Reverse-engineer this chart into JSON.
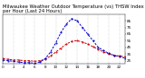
{
  "title": "Milwaukee Weather Outdoor Temperature (vs) THSW Index per Hour (Last 24 Hours)",
  "hours": [
    0,
    1,
    2,
    3,
    4,
    5,
    6,
    7,
    8,
    9,
    10,
    11,
    12,
    13,
    14,
    15,
    16,
    17,
    18,
    19,
    20,
    21,
    22,
    23
  ],
  "temp": [
    28,
    27,
    26,
    26,
    25,
    25,
    24,
    25,
    27,
    32,
    38,
    44,
    50,
    54,
    55,
    53,
    50,
    46,
    42,
    38,
    35,
    33,
    32,
    31
  ],
  "thsw": [
    26,
    25,
    24,
    23,
    22,
    22,
    21,
    23,
    28,
    38,
    52,
    68,
    80,
    88,
    85,
    75,
    65,
    55,
    45,
    40,
    36,
    33,
    31,
    29
  ],
  "temp_color": "#cc0000",
  "thsw_color": "#0000cc",
  "grid_color": "#888888",
  "bg_color": "#ffffff",
  "ylim_min": 20,
  "ylim_max": 95,
  "yticks": [
    25,
    35,
    45,
    55,
    65,
    75,
    85
  ],
  "ytick_labels": [
    "25",
    "35",
    "45",
    "55",
    "65",
    "75",
    "85"
  ],
  "title_fontsize": 3.8,
  "tick_fontsize": 3.0,
  "line_width": 0.7,
  "marker_size": 1.0
}
